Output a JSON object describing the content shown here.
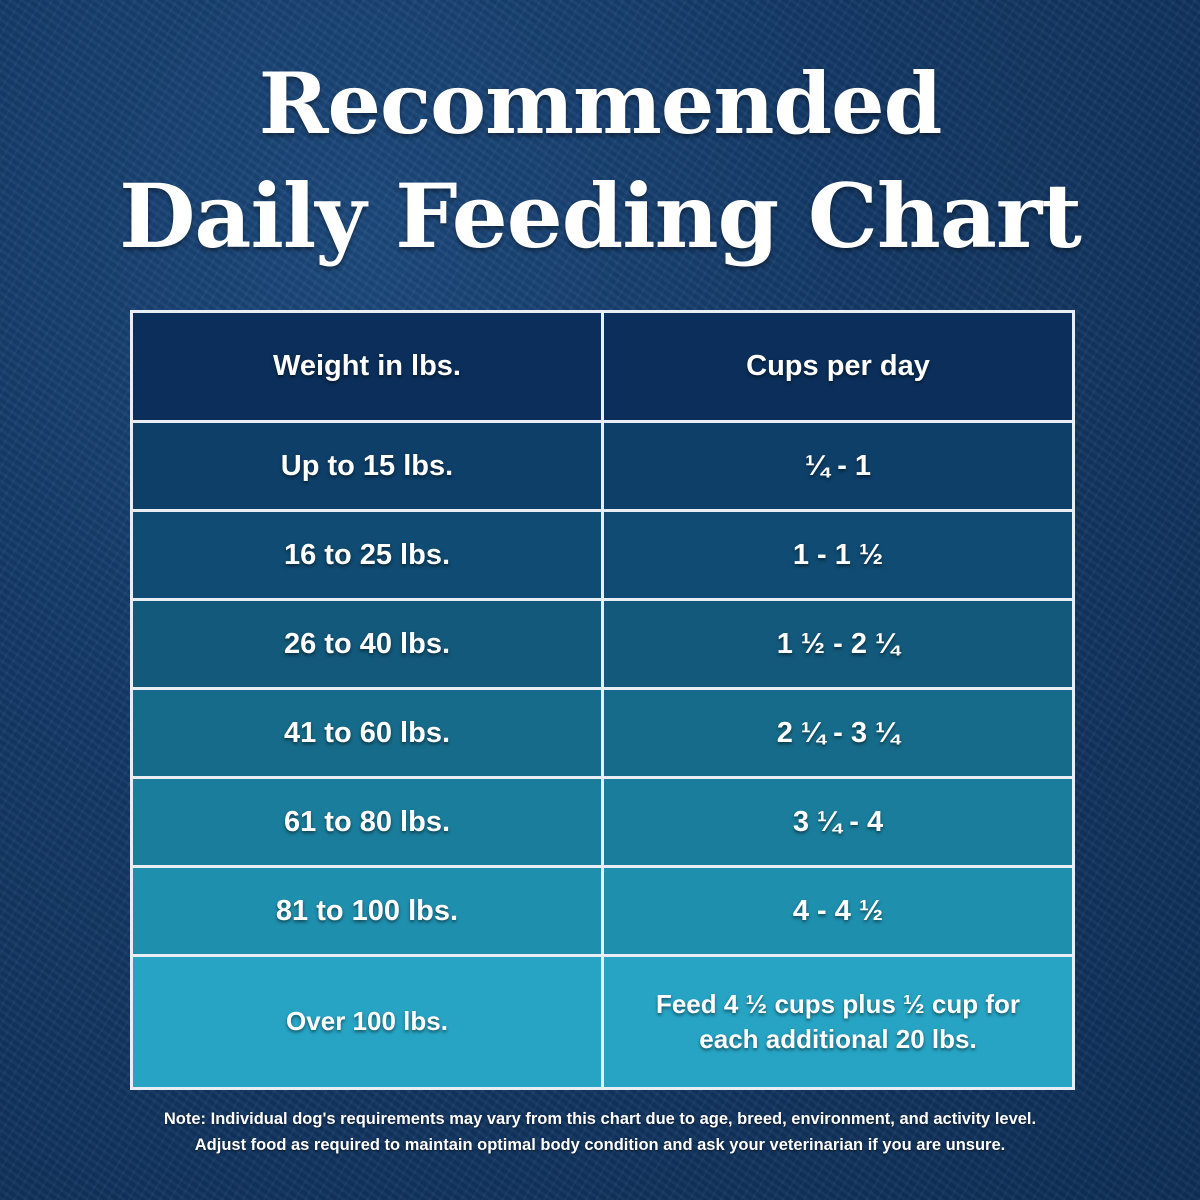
{
  "title_line1": "Recommended",
  "title_line2": "Daily Feeding Chart",
  "chart_data": {
    "type": "table",
    "columns": [
      "Weight in lbs.",
      "Cups per day"
    ],
    "rows": [
      [
        "Up to 15 lbs.",
        "¼  - 1"
      ],
      [
        "16 to 25 lbs.",
        "1  - 1 ½"
      ],
      [
        "26 to 40 lbs.",
        "1 ½  - 2 ¼"
      ],
      [
        "41 to 60 lbs.",
        "2 ¼  - 3 ¼"
      ],
      [
        "61 to 80 lbs.",
        "3 ¼  - 4"
      ],
      [
        "81 to 100 lbs.",
        "4  - 4 ½"
      ],
      [
        "Over 100 lbs.",
        "Feed 4 ½ cups plus ½ cup for each additional 20 lbs."
      ]
    ],
    "row_colors": [
      "#0d3f69",
      "#0f4b72",
      "#12597c",
      "#166b8a",
      "#1a7d9c",
      "#1f8fae",
      "#27a4c4"
    ],
    "header_color": "#0b2f5a"
  },
  "note_line1": "Note: Individual dog's requirements may vary from this chart due to age, breed, environment, and activity level.",
  "note_line2": "Adjust food as required to maintain optimal body condition and ask your veterinarian if you are unsure."
}
